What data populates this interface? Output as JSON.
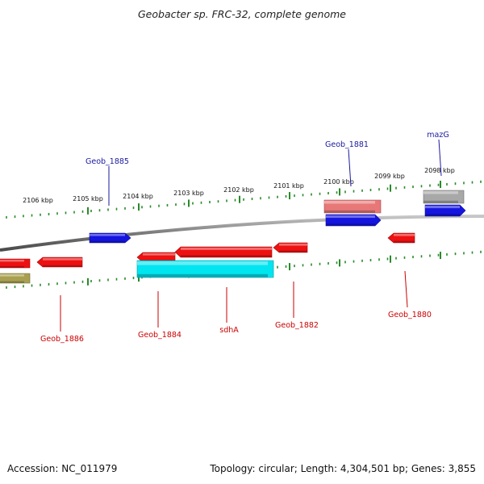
{
  "title": "Geobacter sp. FRC-32, complete genome",
  "footer": {
    "accession": "Accession: NC_011979",
    "summary": "Topology: circular; Length: 4,304,501 bp; Genes: 3,855"
  },
  "colors": {
    "backbone": "#7a7a7a",
    "ticks": "#2a8a2a",
    "forward_label": "#1a1aa0",
    "reverse_label": "#cc0000",
    "red": "#ee1111",
    "blue": "#1515e0",
    "cyan": "#00e5f0",
    "pink": "#e87878",
    "gray": "#a8a8a8",
    "olive": "#a8a050"
  },
  "scale_labels": [
    "2106 kbp",
    "2105 kbp",
    "2104 kbp",
    "2103 kbp",
    "2102 kbp",
    "2101 kbp",
    "2100 kbp",
    "2099 kbp",
    "2098 kbp"
  ],
  "features": [
    {
      "id": "f1",
      "strand": "reverse",
      "color": "red",
      "label": ""
    },
    {
      "id": "f2",
      "strand": "reverse",
      "color": "olive",
      "label": ""
    },
    {
      "id": "f3",
      "strand": "reverse",
      "color": "red",
      "label": "Geob_1886"
    },
    {
      "id": "f4",
      "strand": "forward",
      "color": "blue",
      "label": "Geob_1885"
    },
    {
      "id": "f5",
      "strand": "reverse",
      "color": "red",
      "label": "Geob_1884"
    },
    {
      "id": "f6",
      "strand": "reverse",
      "color": "red",
      "label": "sdhA"
    },
    {
      "id": "f7",
      "strand": "reverse",
      "color": "cyan",
      "label": ""
    },
    {
      "id": "f8",
      "strand": "reverse",
      "color": "red",
      "label": "Geob_1882"
    },
    {
      "id": "f9",
      "strand": "forward",
      "color": "pink",
      "label": ""
    },
    {
      "id": "f10",
      "strand": "forward",
      "color": "blue",
      "label": "Geob_1881"
    },
    {
      "id": "f11",
      "strand": "reverse",
      "color": "red",
      "label": "Geob_1880"
    },
    {
      "id": "f12",
      "strand": "forward",
      "color": "gray",
      "label": ""
    },
    {
      "id": "f13",
      "strand": "forward",
      "color": "blue",
      "label": "mazG"
    }
  ]
}
